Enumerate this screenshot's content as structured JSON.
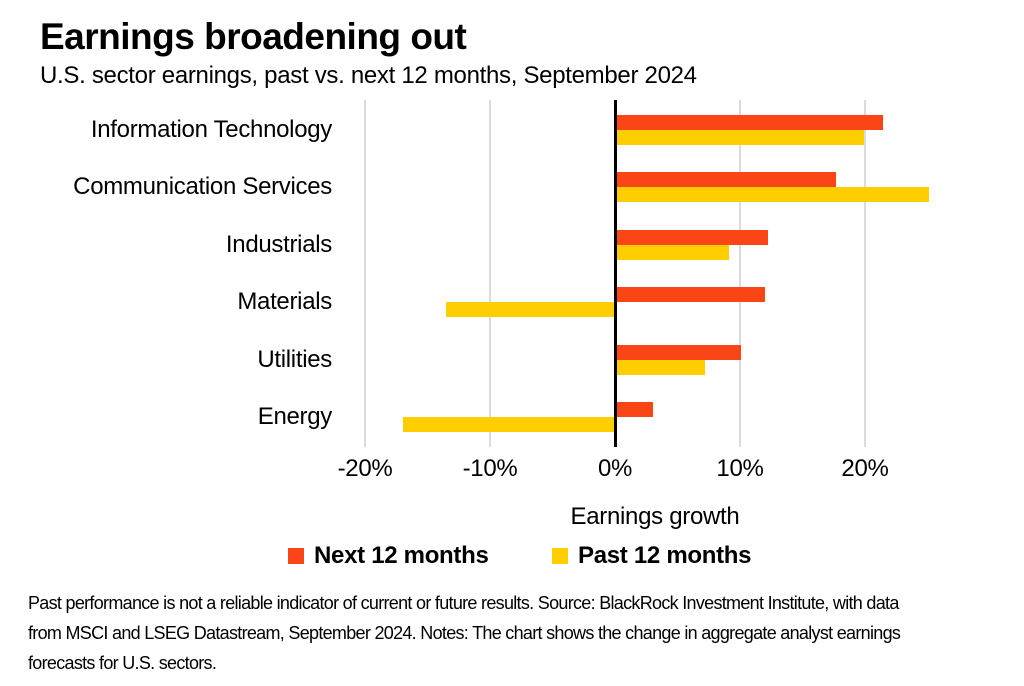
{
  "chart_data": {
    "type": "bar",
    "orientation": "horizontal",
    "title": "Earnings broadening out",
    "subtitle": "U.S. sector earnings, past vs. next 12 months, September 2024",
    "categories": [
      "Information Technology",
      "Communication Services",
      "Industrials",
      "Materials",
      "Utilities",
      "Energy"
    ],
    "series": [
      {
        "name": "Next 12 months",
        "color": "#FA4616",
        "values": [
          21.4,
          17.7,
          12.2,
          12.0,
          10.1,
          3.0
        ]
      },
      {
        "name": "Past 12 months",
        "color": "#FFCE00",
        "values": [
          19.9,
          25.1,
          9.1,
          -13.5,
          7.2,
          -17.0
        ]
      }
    ],
    "xlabel": "Earnings growth",
    "xlim": [
      -22,
      28
    ],
    "xticks": [
      {
        "value": -20,
        "label": "-20%"
      },
      {
        "value": -10,
        "label": "-10%"
      },
      {
        "value": 0,
        "label": "0%"
      },
      {
        "value": 10,
        "label": "10%"
      },
      {
        "value": 20,
        "label": "20%"
      }
    ],
    "grid": true,
    "legend_position": "bottom",
    "colors": {
      "grid": "#dbdbdb",
      "axis": "#000000",
      "text": "#000000",
      "background": "#ffffff"
    }
  },
  "footer": {
    "lines": [
      "Past performance is not a reliable indicator of current or future results. Source: BlackRock Investment Institute, with data",
      "from MSCI and LSEG Datastream, September 2024. Notes: The chart shows the change in aggregate analyst earnings",
      "forecasts for U.S. sectors."
    ]
  }
}
